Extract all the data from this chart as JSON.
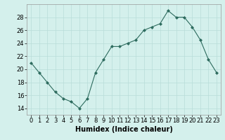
{
  "x": [
    0,
    1,
    2,
    3,
    4,
    5,
    6,
    7,
    8,
    9,
    10,
    11,
    12,
    13,
    14,
    15,
    16,
    17,
    18,
    19,
    20,
    21,
    22,
    23
  ],
  "y": [
    21,
    19.5,
    18,
    16.5,
    15.5,
    15,
    14,
    15.5,
    19.5,
    21.5,
    23.5,
    23.5,
    24,
    24.5,
    26,
    26.5,
    27,
    29,
    28,
    28,
    26.5,
    24.5,
    21.5,
    19.5
  ],
  "line_color": "#2d6b5e",
  "marker": "D",
  "marker_size": 2,
  "bg_color": "#d4f0ec",
  "grid_color": "#b8ddd8",
  "xlabel": "Humidex (Indice chaleur)",
  "xlim": [
    -0.5,
    23.5
  ],
  "ylim": [
    13,
    30
  ],
  "yticks": [
    14,
    16,
    18,
    20,
    22,
    24,
    26,
    28
  ],
  "xticks": [
    0,
    1,
    2,
    3,
    4,
    5,
    6,
    7,
    8,
    9,
    10,
    11,
    12,
    13,
    14,
    15,
    16,
    17,
    18,
    19,
    20,
    21,
    22,
    23
  ],
  "xlabel_fontsize": 7,
  "tick_fontsize": 6
}
